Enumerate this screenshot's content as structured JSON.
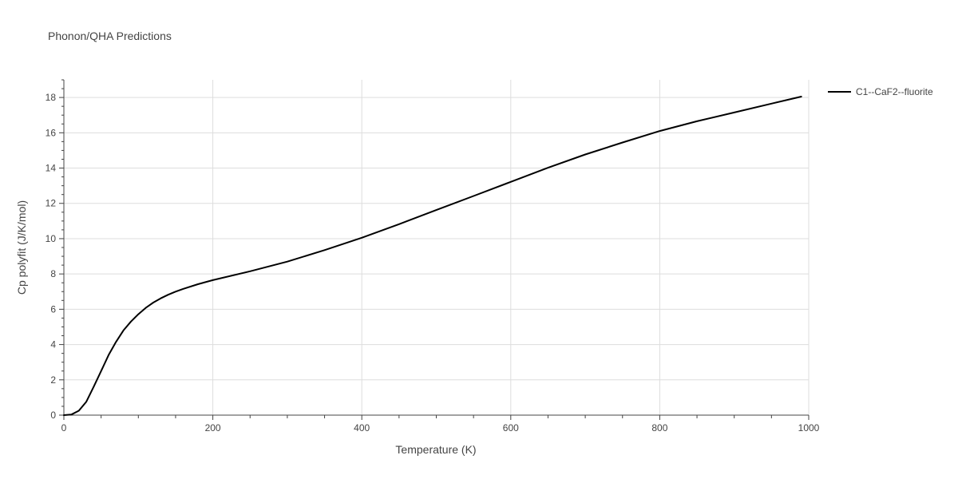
{
  "chart_data": {
    "type": "line",
    "title": "Phonon/QHA Predictions",
    "xlabel": "Temperature (K)",
    "ylabel": "Cp polyfit (J/K/mol)",
    "xlim": [
      0,
      1000
    ],
    "ylim": [
      0,
      19
    ],
    "xticks": [
      0,
      200,
      400,
      600,
      800,
      1000
    ],
    "xtick_labels": [
      "0",
      "200",
      "400",
      "600",
      "800",
      "1000"
    ],
    "yticks": [
      0,
      2,
      4,
      6,
      8,
      10,
      12,
      14,
      16,
      18
    ],
    "ytick_labels": [
      "0",
      "2",
      "4",
      "6",
      "8",
      "10",
      "12",
      "14",
      "16",
      "18"
    ],
    "grid": true,
    "legend_position": "top-right",
    "series": [
      {
        "name": "C1--CaF2--fluorite",
        "color": "#000000",
        "x": [
          0,
          10,
          20,
          30,
          40,
          50,
          60,
          70,
          80,
          90,
          100,
          110,
          120,
          130,
          140,
          150,
          160,
          180,
          200,
          250,
          300,
          350,
          400,
          450,
          500,
          550,
          600,
          650,
          700,
          750,
          800,
          850,
          900,
          950,
          990
        ],
        "y": [
          0,
          0.03,
          0.25,
          0.75,
          1.6,
          2.5,
          3.4,
          4.15,
          4.8,
          5.3,
          5.72,
          6.08,
          6.38,
          6.62,
          6.82,
          7.0,
          7.15,
          7.42,
          7.65,
          8.15,
          8.7,
          9.35,
          10.05,
          10.82,
          11.62,
          12.42,
          13.22,
          14.02,
          14.77,
          15.45,
          16.1,
          16.65,
          17.15,
          17.65,
          18.05
        ]
      }
    ]
  }
}
